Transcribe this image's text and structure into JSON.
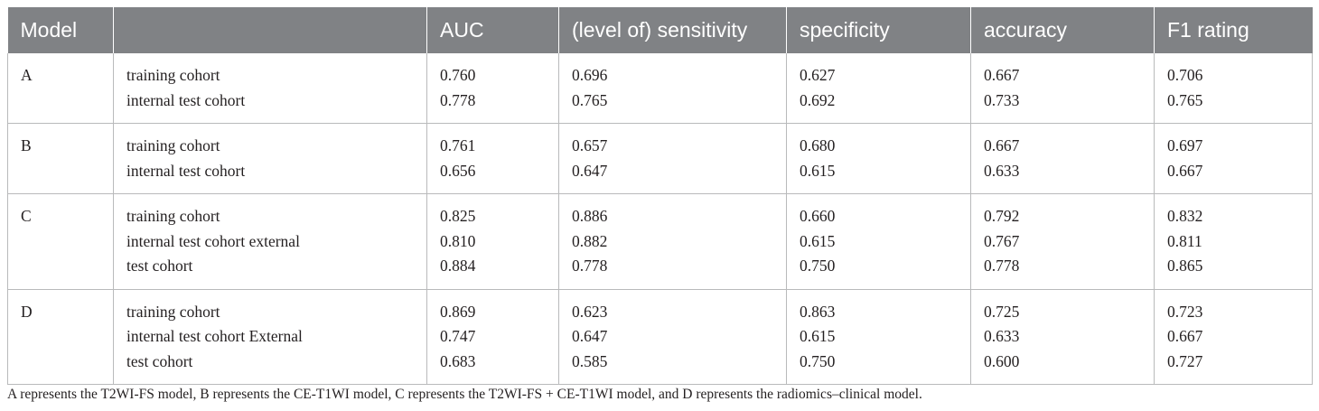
{
  "table": {
    "headers": [
      "Model",
      "",
      "AUC",
      "(level of) sensitivity",
      "specificity",
      "accuracy",
      "F1 rating"
    ],
    "rows": [
      {
        "model": "A",
        "cohorts": [
          "training cohort",
          "internal test cohort"
        ],
        "auc": [
          "0.760",
          "0.778"
        ],
        "sensitivity": [
          "0.696",
          "0.765"
        ],
        "specificity": [
          "0.627",
          "0.692"
        ],
        "accuracy": [
          "0.667",
          "0.733"
        ],
        "f1": [
          "0.706",
          "0.765"
        ]
      },
      {
        "model": "B",
        "cohorts": [
          "training cohort",
          "internal test cohort"
        ],
        "auc": [
          "0.761",
          "0.656"
        ],
        "sensitivity": [
          "0.657",
          "0.647"
        ],
        "specificity": [
          "0.680",
          "0.615"
        ],
        "accuracy": [
          "0.667",
          "0.633"
        ],
        "f1": [
          "0.697",
          "0.667"
        ]
      },
      {
        "model": "C",
        "cohorts": [
          "training cohort",
          "internal test cohort external",
          "test cohort"
        ],
        "auc": [
          "0.825",
          "0.810",
          "0.884"
        ],
        "sensitivity": [
          "0.886",
          "0.882",
          "0.778"
        ],
        "specificity": [
          "0.660",
          "0.615",
          "0.750"
        ],
        "accuracy": [
          "0.792",
          "0.767",
          "0.778"
        ],
        "f1": [
          "0.832",
          "0.811",
          "0.865"
        ]
      },
      {
        "model": "D",
        "cohorts": [
          "training cohort",
          "internal test cohort External",
          "test cohort"
        ],
        "auc": [
          "0.869",
          "0.747",
          "0.683"
        ],
        "sensitivity": [
          "0.623",
          "0.647",
          "0.585"
        ],
        "specificity": [
          "0.863",
          "0.615",
          "0.750"
        ],
        "accuracy": [
          "0.725",
          "0.633",
          "0.600"
        ],
        "f1": [
          "0.723",
          "0.667",
          "0.727"
        ]
      }
    ]
  },
  "footnote": "A represents the T2WI-FS model, B represents the CE-T1WI model, C represents the T2WI-FS + CE-T1WI model, and D represents the radiomics–clinical model.",
  "colors": {
    "header_bg": "#808285",
    "header_text": "#ffffff",
    "grid_line": "#b9babb",
    "body_text": "#231f20"
  }
}
